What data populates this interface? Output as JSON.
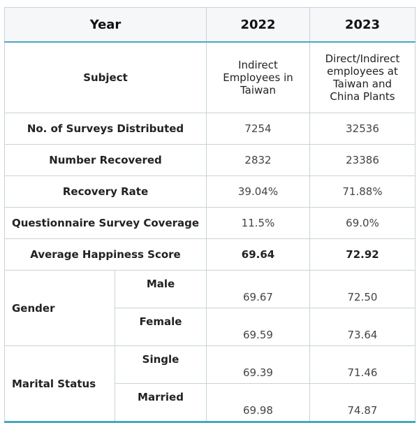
{
  "header": {
    "year_label": "Year",
    "col1": "2022",
    "col2": "2023"
  },
  "subject": {
    "label": "Subject",
    "col1_lines": [
      "Indirect",
      "Employees in",
      "Taiwan"
    ],
    "col2_lines": [
      "Direct/Indirect",
      "employees at",
      "Taiwan and",
      "China Plants"
    ]
  },
  "rows": [
    {
      "label": "No. of Surveys Distributed",
      "v2022": "7254",
      "v2023": "32536"
    },
    {
      "label": "Number Recovered",
      "v2022": "2832",
      "v2023": "23386"
    },
    {
      "label": "Recovery Rate",
      "v2022": "39.04%",
      "v2023": "71.88%"
    },
    {
      "label": "Questionnaire Survey Coverage",
      "v2022": "11.5%",
      "v2023": "69.0%"
    },
    {
      "label": "Average Happiness Score",
      "v2022": "69.64",
      "v2023": "72.92"
    }
  ],
  "gender": {
    "label": "Gender",
    "items": [
      {
        "label": "Male",
        "v2022": "69.67",
        "v2023": "72.50"
      },
      {
        "label": "Female",
        "v2022": "69.59",
        "v2023": "73.64"
      }
    ]
  },
  "marital": {
    "label": "Marital Status",
    "items": [
      {
        "label": "Single",
        "v2022": "69.39",
        "v2023": "71.46"
      },
      {
        "label": "Married",
        "v2022": "69.98",
        "v2023": "74.87"
      }
    ]
  }
}
